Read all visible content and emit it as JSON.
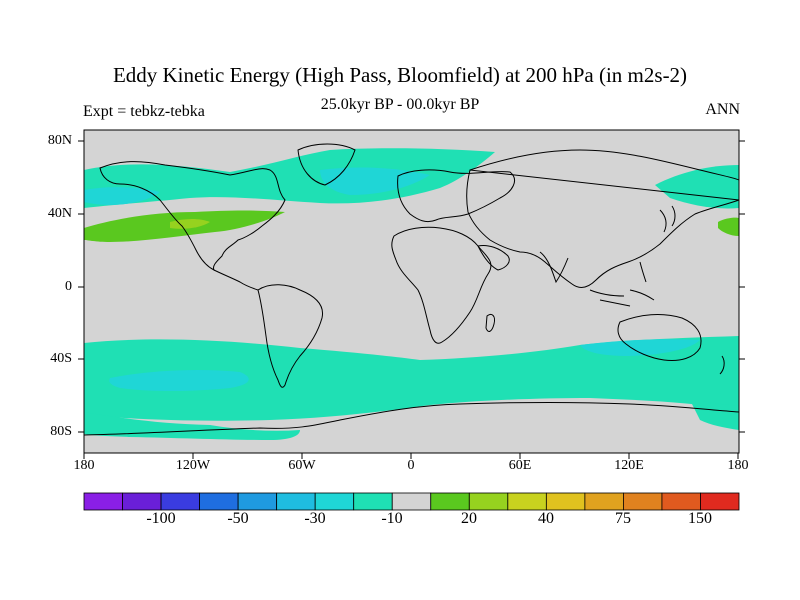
{
  "title": "Eddy Kinetic Energy (High Pass, Bloomfield) at 200 hPa (in m2s-2)",
  "subtitle": "25.0kyr BP - 00.0kyr BP",
  "left_label": "Expt = tebkz-tebka",
  "right_label": "ANN",
  "lat_labels": [
    "80N",
    "40N",
    "0",
    "40S",
    "80S"
  ],
  "lon_labels": [
    "180",
    "120W",
    "60W",
    "0",
    "60E",
    "120E",
    "180"
  ],
  "colorbar": {
    "labels": [
      "-100",
      "-50",
      "-30",
      "-10",
      "20",
      "40",
      "75",
      "150"
    ],
    "colors": [
      "#8a1fe6",
      "#6a1fd8",
      "#3a3ce0",
      "#1f6ee0",
      "#1f9ae0",
      "#1fbde0",
      "#1fd6d6",
      "#1fe0b4",
      "#d4d4d4",
      "#5ac81f",
      "#96d21f",
      "#c8d21f",
      "#e0c21f",
      "#e0a21f",
      "#e0821f",
      "#e05a1f",
      "#e02a1f"
    ]
  },
  "colors": {
    "land_sea_background": "#d4d4d4",
    "negative_small": "#1fe0b4",
    "negative_medium": "#1fd6d6",
    "negative_large": "#1fbde0",
    "positive_small": "#5ac81f",
    "positive_medium": "#96d21f",
    "coastline": "#000000"
  }
}
